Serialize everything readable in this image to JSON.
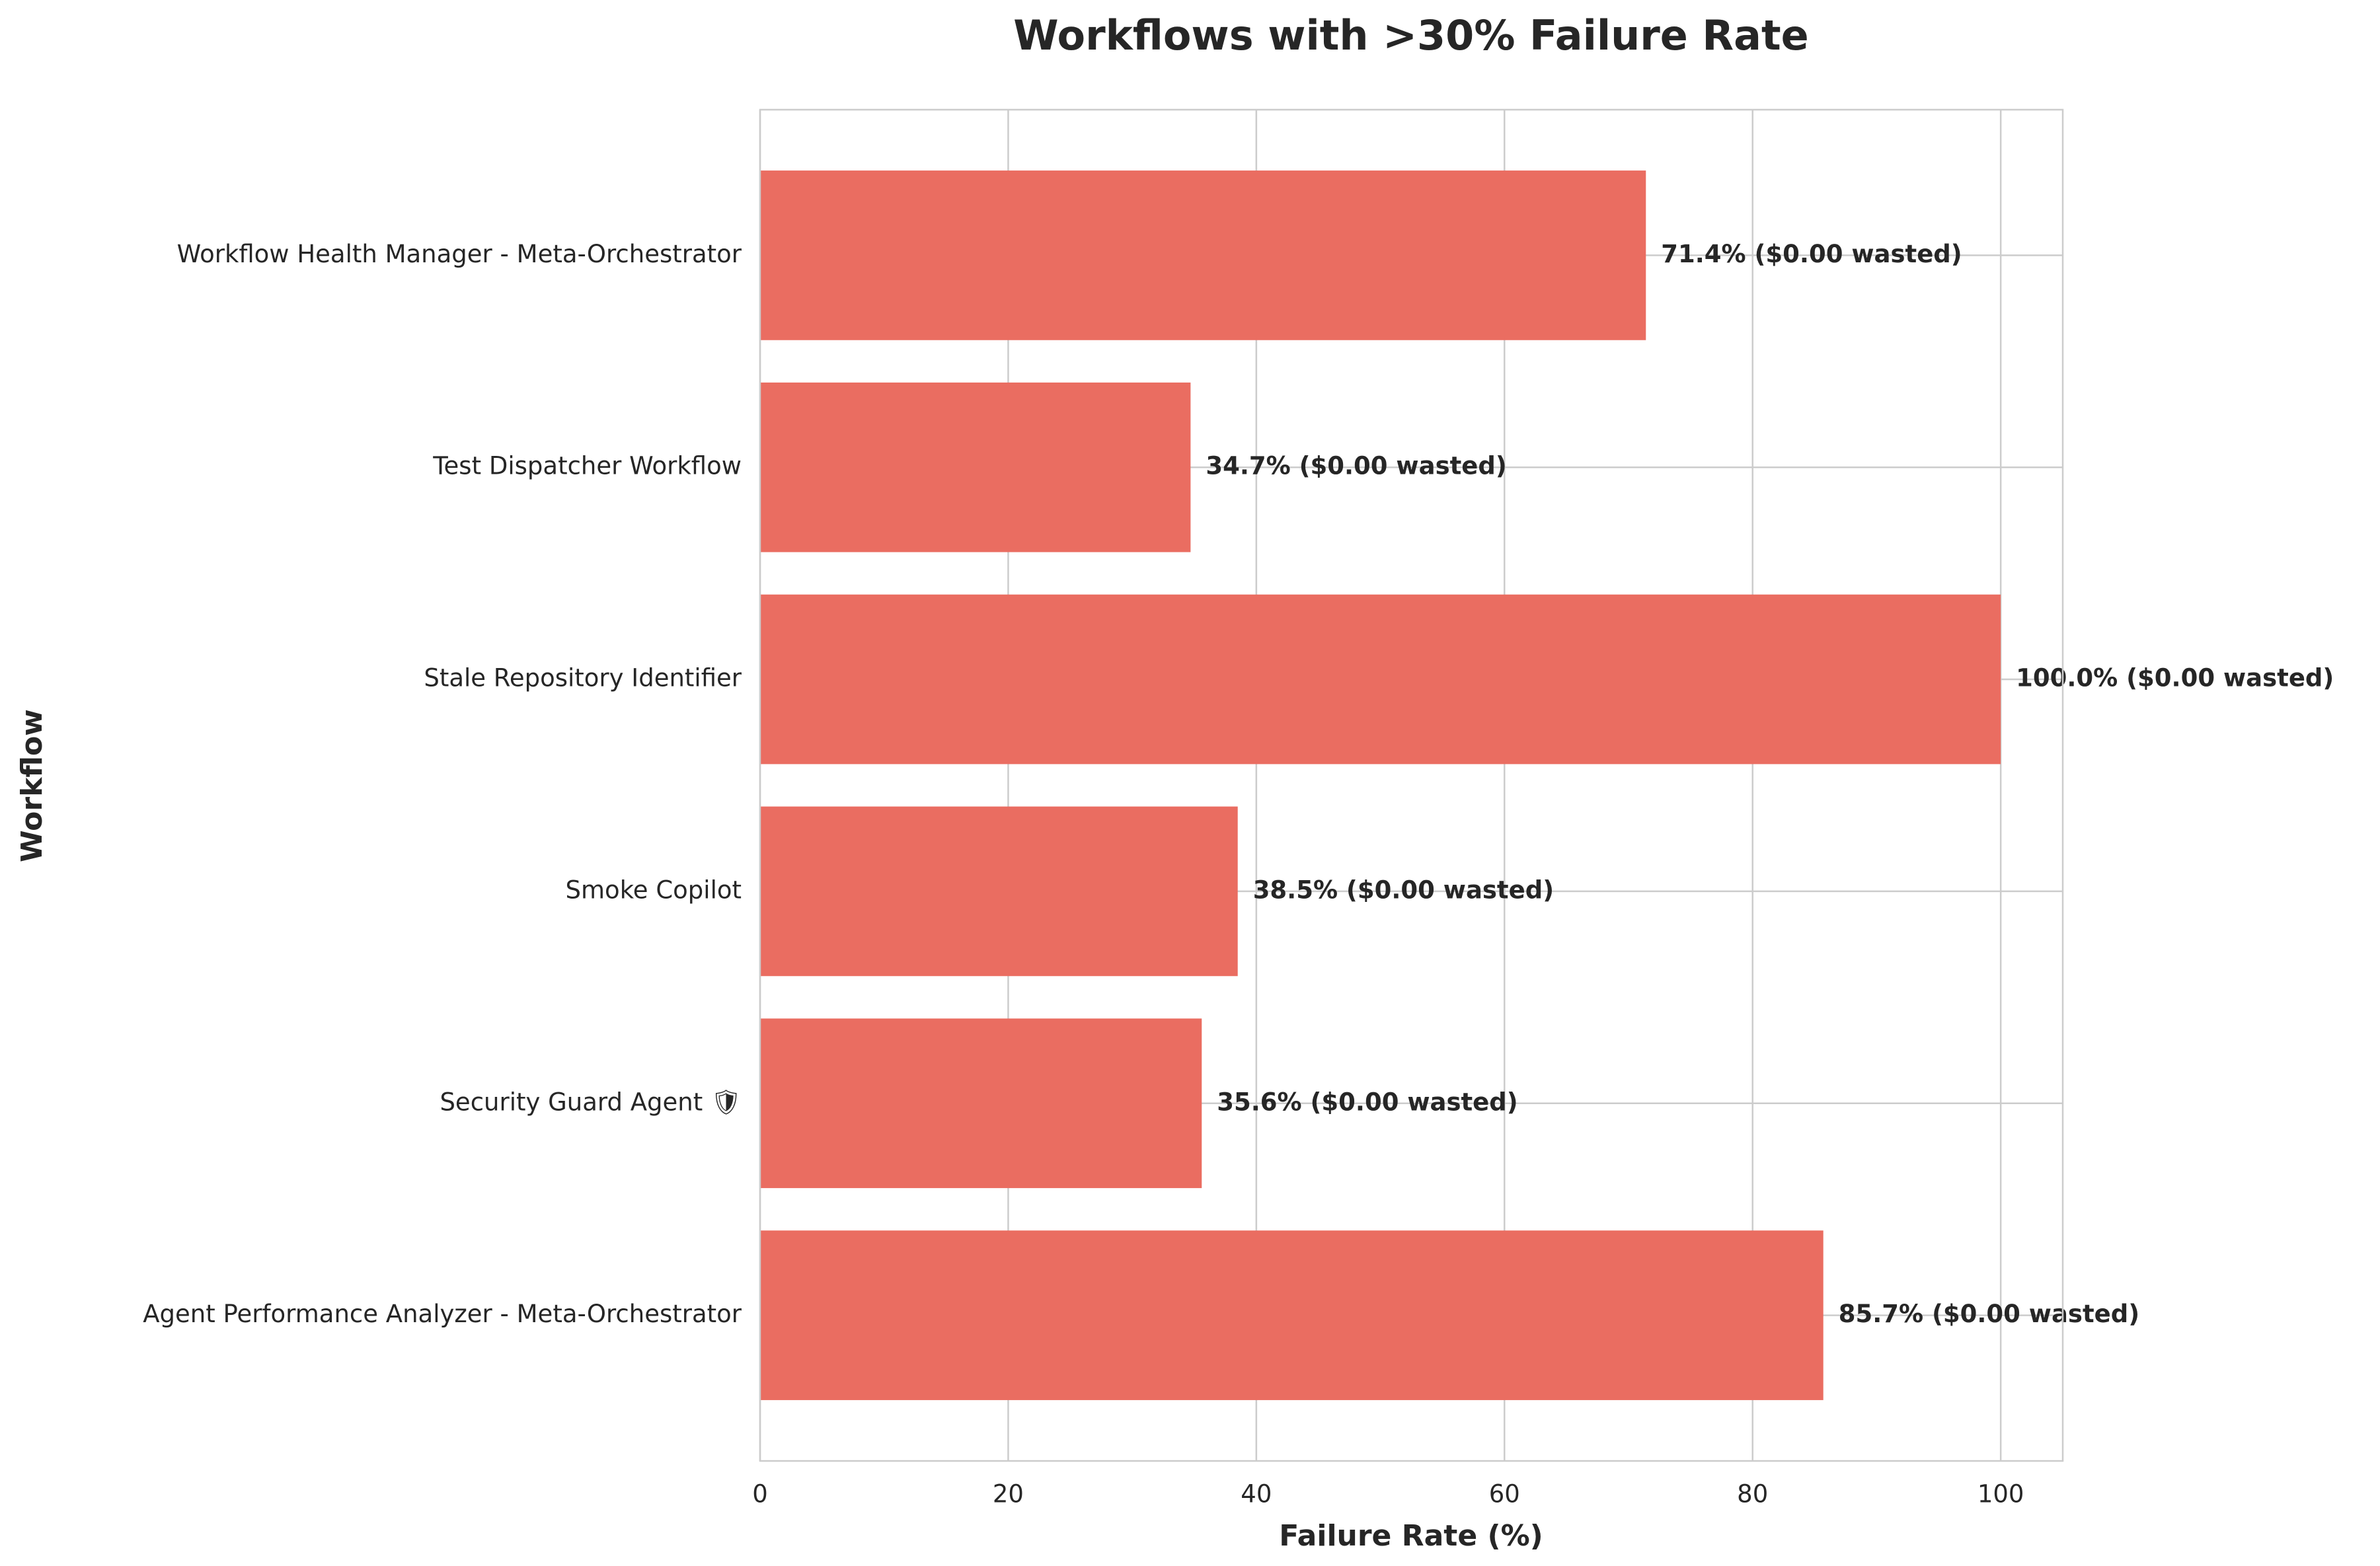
{
  "chart_data": {
    "type": "barh",
    "title": "Workflows with >30% Failure Rate",
    "x_label": "Failure Rate (%)",
    "y_label": "Workflow",
    "categories": [
      "Workflow Health Manager - Meta-Orchestrator",
      "Test Dispatcher Workflow",
      "Stale Repository Identifier",
      "Smoke Copilot",
      "Security Guard Agent 🛡",
      "Agent Performance Analyzer - Meta-Orchestrator"
    ],
    "values": [
      71.4,
      34.7,
      100.0,
      38.5,
      35.6,
      85.7
    ],
    "value_labels": [
      "71.4% ($0.00 wasted)",
      "34.7% ($0.00 wasted)",
      "100.0% ($0.00 wasted)",
      "38.5% ($0.00 wasted)",
      "35.6% ($0.00 wasted)",
      "85.7% ($0.00 wasted)"
    ],
    "color": "#ea6d61",
    "xlim": [
      0,
      105
    ],
    "xticks": [
      0,
      20,
      40,
      60,
      80,
      100
    ],
    "grid": true
  }
}
